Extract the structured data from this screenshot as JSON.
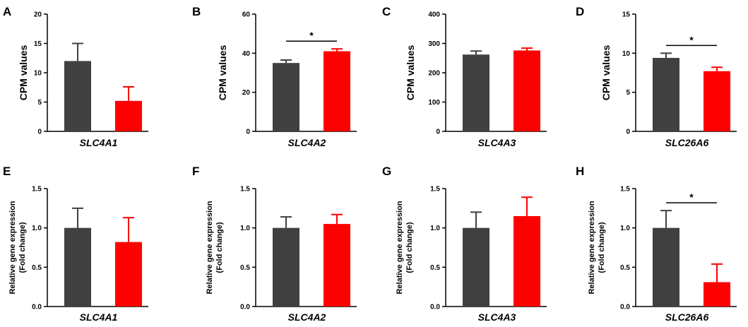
{
  "colors": {
    "control": "#404040",
    "treated": "#ff0000",
    "axis": "#000000"
  },
  "chart_data": [
    {
      "letter": "A",
      "type": "bar",
      "ylabel": "CPM values",
      "xlabel": "SLC4A1",
      "ylim": [
        0,
        20
      ],
      "yticks": [
        "0",
        "5",
        "10",
        "15",
        "20"
      ],
      "tick_values": [
        0,
        5,
        10,
        15,
        20
      ],
      "values": [
        12,
        5.2
      ],
      "errors": [
        3,
        2.4
      ],
      "significance": null
    },
    {
      "letter": "B",
      "type": "bar",
      "ylabel": "CPM values",
      "xlabel": "SLC4A2",
      "ylim": [
        0,
        60
      ],
      "yticks": [
        "0",
        "20",
        "40",
        "60"
      ],
      "tick_values": [
        0,
        20,
        40,
        60
      ],
      "values": [
        35,
        41
      ],
      "errors": [
        1.5,
        1.2
      ],
      "significance": "*"
    },
    {
      "letter": "C",
      "type": "bar",
      "ylabel": "CPM values",
      "xlabel": "SLC4A3",
      "ylim": [
        0,
        400
      ],
      "yticks": [
        "0",
        "100",
        "200",
        "300",
        "400"
      ],
      "tick_values": [
        0,
        100,
        200,
        300,
        400
      ],
      "values": [
        262,
        276
      ],
      "errors": [
        12,
        8
      ],
      "significance": null
    },
    {
      "letter": "D",
      "type": "bar",
      "ylabel": "CPM values",
      "xlabel": "SLC26A6",
      "ylim": [
        0,
        15
      ],
      "yticks": [
        "0",
        "5",
        "10",
        "15"
      ],
      "tick_values": [
        0,
        5,
        10,
        15
      ],
      "values": [
        9.4,
        7.7
      ],
      "errors": [
        0.6,
        0.5
      ],
      "significance": "*"
    },
    {
      "letter": "E",
      "type": "bar",
      "ylabel": [
        "Relative gene expression",
        "(Fold change)"
      ],
      "xlabel": "SLC4A1",
      "ylim": [
        0,
        1.5
      ],
      "yticks": [
        "0.0",
        "0.5",
        "1.0",
        "1.5"
      ],
      "tick_values": [
        0,
        0.5,
        1.0,
        1.5
      ],
      "values": [
        1.0,
        0.82
      ],
      "errors": [
        0.25,
        0.31
      ],
      "significance": null
    },
    {
      "letter": "F",
      "type": "bar",
      "ylabel": [
        "Relative gene expression",
        "(Fold change)"
      ],
      "xlabel": "SLC4A2",
      "ylim": [
        0,
        1.5
      ],
      "yticks": [
        "0.0",
        "0.5",
        "1.0",
        "1.5"
      ],
      "tick_values": [
        0,
        0.5,
        1.0,
        1.5
      ],
      "values": [
        1.0,
        1.05
      ],
      "errors": [
        0.14,
        0.12
      ],
      "significance": null
    },
    {
      "letter": "G",
      "type": "bar",
      "ylabel": [
        "Relative gene expression",
        "(Fold change)"
      ],
      "xlabel": "SLC4A3",
      "ylim": [
        0,
        1.5
      ],
      "yticks": [
        "0.0",
        "0.5",
        "1.0",
        "1.5"
      ],
      "tick_values": [
        0,
        0.5,
        1.0,
        1.5
      ],
      "values": [
        1.0,
        1.15
      ],
      "errors": [
        0.2,
        0.24
      ],
      "significance": null
    },
    {
      "letter": "H",
      "type": "bar",
      "ylabel": [
        "Relative gene expression",
        "(Fold change)"
      ],
      "xlabel": "SLC26A6",
      "ylim": [
        0,
        1.5
      ],
      "yticks": [
        "0.0",
        "0.5",
        "1.0",
        "1.5"
      ],
      "tick_values": [
        0,
        0.5,
        1.0,
        1.5
      ],
      "values": [
        1.0,
        0.31
      ],
      "errors": [
        0.22,
        0.23
      ],
      "significance": "*"
    }
  ]
}
